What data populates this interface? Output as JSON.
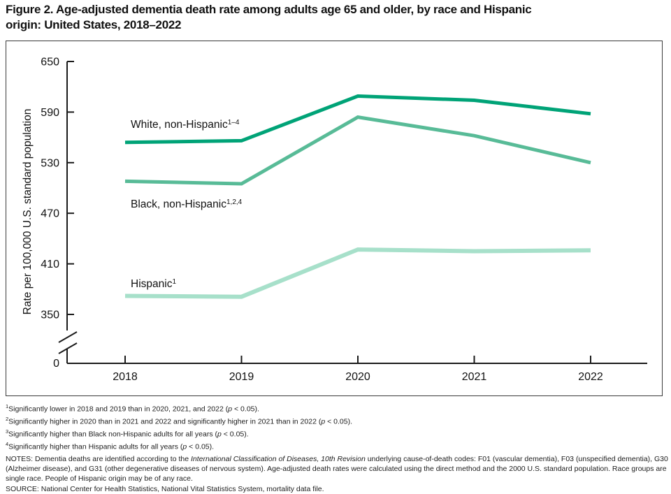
{
  "title": {
    "line1": "Figure 2. Age-adjusted dementia death rate among adults age 65 and older, by race and Hispanic",
    "line2": "origin: United States, 2018–2022"
  },
  "chart_data": {
    "type": "line",
    "x": [
      "2018",
      "2019",
      "2020",
      "2021",
      "2022"
    ],
    "series": [
      {
        "name": "White, non-Hispanic",
        "superscript": "1–4",
        "color": "#00a377",
        "stroke_width": 5,
        "values": [
          554,
          556,
          609,
          604,
          588
        ]
      },
      {
        "name": "Black, non-Hispanic",
        "superscript": "1,2,4",
        "color": "#58bb97",
        "stroke_width": 5,
        "values": [
          508,
          505,
          584,
          562,
          530
        ]
      },
      {
        "name": "Hispanic",
        "superscript": "1",
        "color": "#a7e0ca",
        "stroke_width": 6,
        "values": [
          372,
          371,
          427,
          425,
          426
        ]
      }
    ],
    "ylabel": "Rate per 100,000 U.S. standard population",
    "yticks": [
      650,
      590,
      530,
      470,
      410,
      350
    ],
    "y_zero_label": "0",
    "axis_break": true,
    "ylim_display": [
      350,
      650
    ],
    "grid": false,
    "legend_position": "inline-labels",
    "axis_color": "#1a1a1a"
  },
  "footnotes": [
    {
      "sup": "1",
      "before": "Significantly lower in 2018 and 2019 than in 2020, 2021, and 2022 (",
      "italic": "p",
      "after": " < 0.05)."
    },
    {
      "sup": "2",
      "before": "Significantly higher in 2020 than in 2021 and 2022 and significantly higher in 2021 than in 2022 (",
      "italic": "p",
      "after": " < 0.05)."
    },
    {
      "sup": "3",
      "before": "Significantly higher than Black non-Hispanic adults for all years (",
      "italic": "p",
      "after": " < 0.05)."
    },
    {
      "sup": "4",
      "before": "Significantly higher than Hispanic adults for all years (",
      "italic": "p",
      "after": " < 0.05)."
    }
  ],
  "notes": {
    "before": "NOTES: Dementia deaths are identified according to the ",
    "italic": "International Classification of Diseases, 10th Revision",
    "after": " underlying cause-of-death codes: F01 (vascular dementia), F03 (unspecified dementia), G30 (Alzheimer disease), and G31 (other degenerative diseases of nervous system). Age-adjusted death rates were calculated using the direct method and the 2000 U.S. standard population. Race groups are single race. People of Hispanic origin may be of any race."
  },
  "source": "SOURCE: National Center for Health Statistics, National Vital Statistics System, mortality data file."
}
